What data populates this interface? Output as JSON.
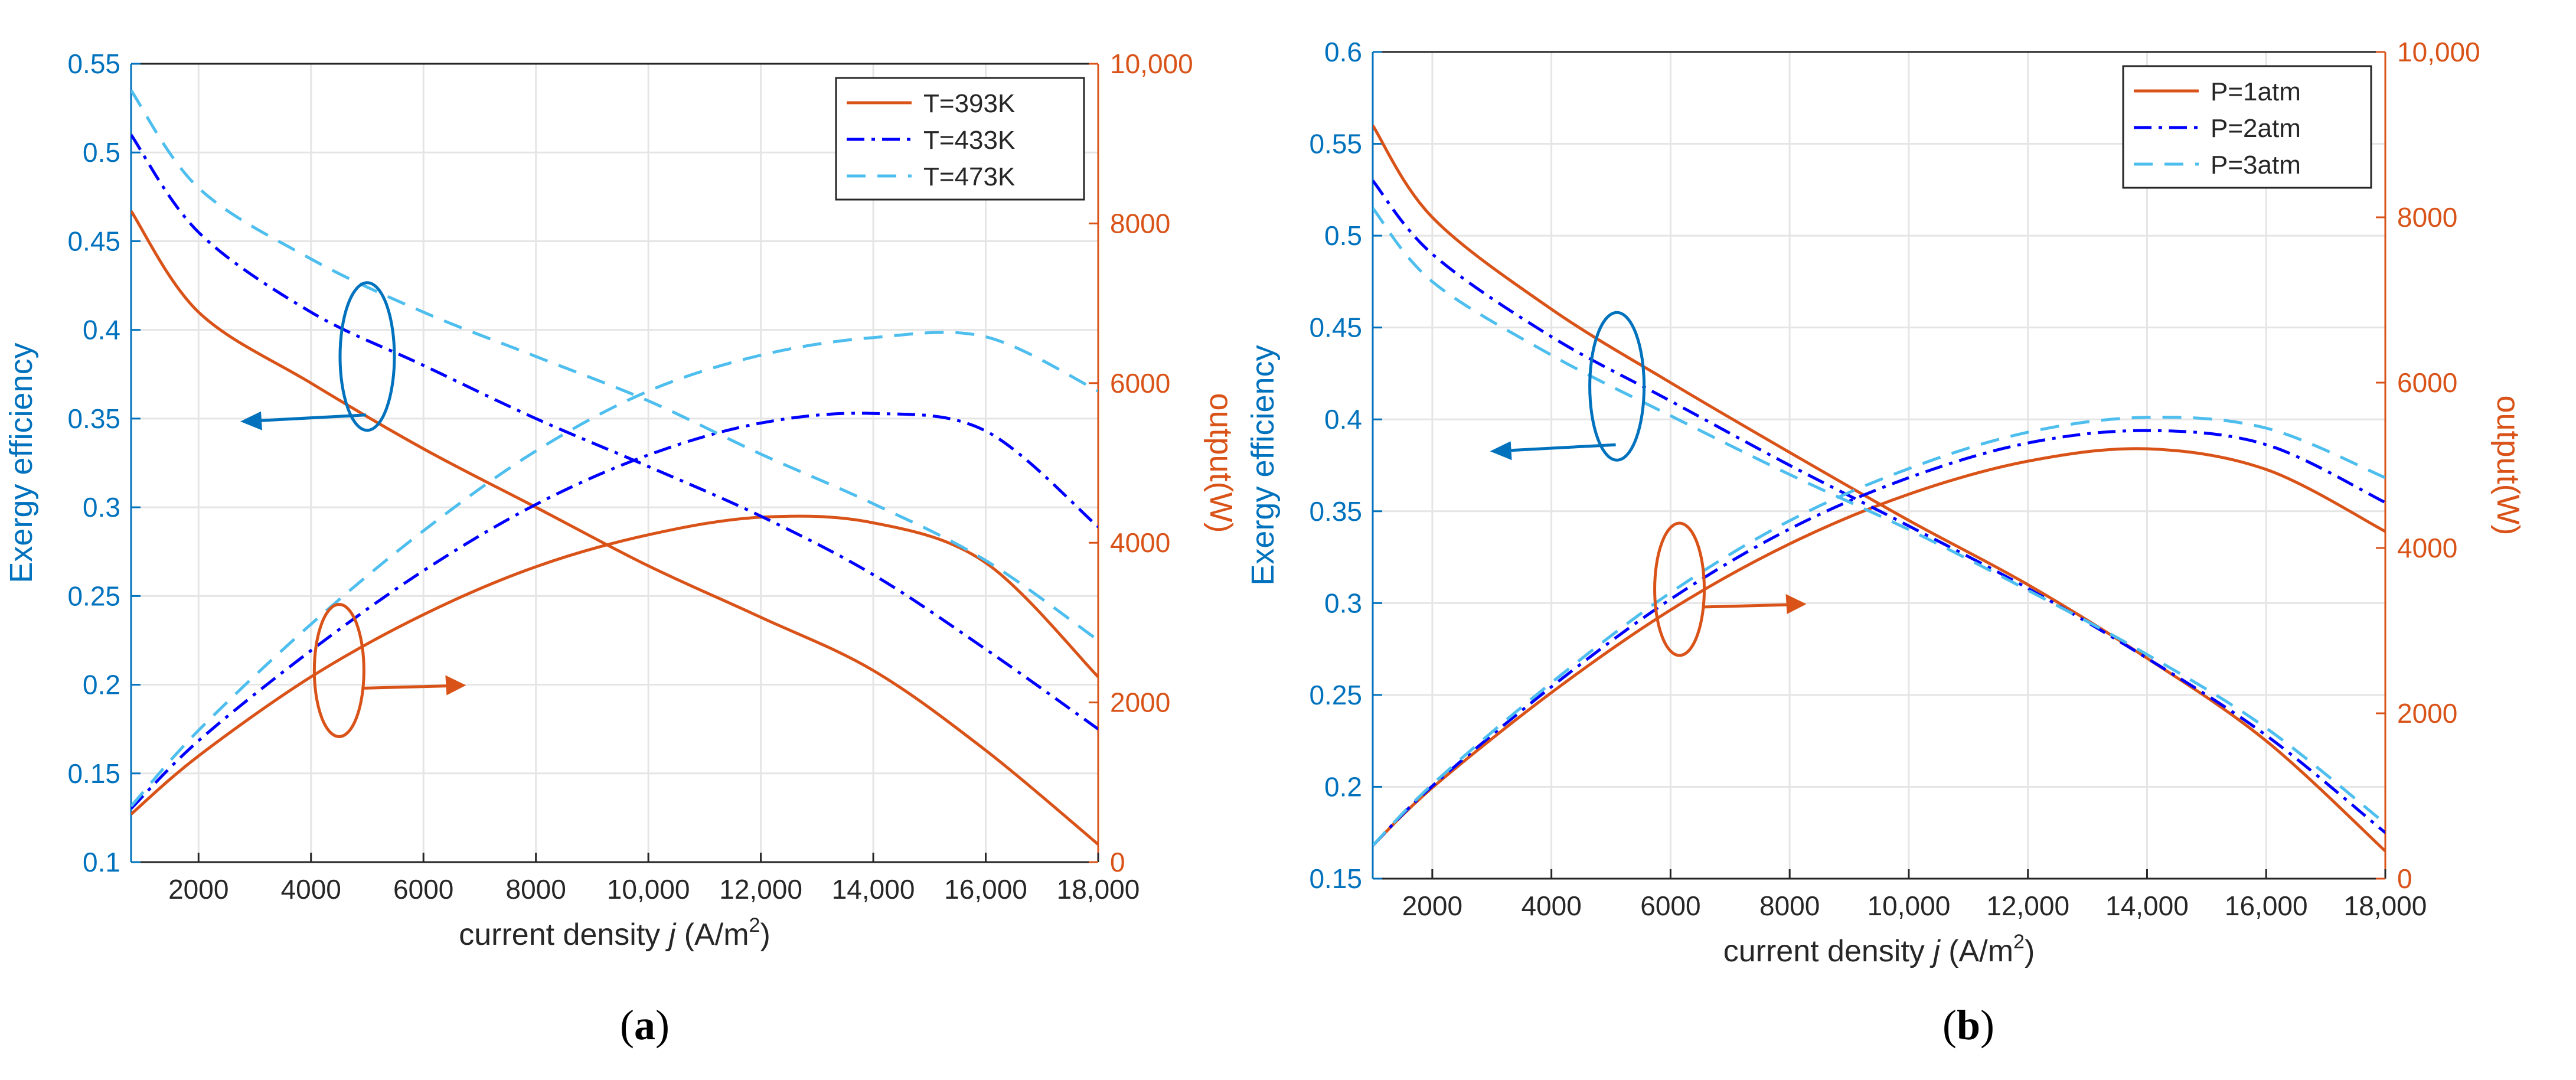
{
  "colors": {
    "left_axis": "#0072BD",
    "right_axis": "#D95319",
    "series1": "#D95319",
    "series2": "#0000FF",
    "series3": "#4DBEEE",
    "grid": "#E5E5E5"
  },
  "chart_data": [
    {
      "type": "line",
      "panel_label": "a",
      "xlabel": "current density j (A/m²)",
      "xlabel_parts": {
        "pre": "current density ",
        "var": "j",
        "post": " (A/m",
        "sup": "2",
        "end": ")"
      },
      "ylabel": "Exergy efficiency",
      "ylabel_right": "output(W)",
      "xlim": [
        800,
        18000
      ],
      "ylim": [
        0.1,
        0.55
      ],
      "ylim_right": [
        0,
        10000
      ],
      "xticks": [
        2000,
        4000,
        6000,
        8000,
        10000,
        12000,
        14000,
        16000,
        18000
      ],
      "xtick_labels": [
        "2000",
        "4000",
        "6000",
        "8000",
        "10,000",
        "12,000",
        "14,000",
        "16,000",
        "18,000"
      ],
      "yticks": [
        0.1,
        0.15,
        0.2,
        0.25,
        0.3,
        0.35,
        0.4,
        0.45,
        0.5,
        0.55
      ],
      "ytick_labels": [
        "0.1",
        "0.15",
        "0.2",
        "0.25",
        "0.3",
        "0.35",
        "0.4",
        "0.45",
        "0.5",
        "0.55"
      ],
      "yticks_right": [
        0,
        2000,
        4000,
        6000,
        8000,
        10000
      ],
      "ytick_labels_right": [
        "0",
        "2000",
        "4000",
        "6000",
        "8000",
        "10,000"
      ],
      "legend_position": "top-right",
      "x": [
        800,
        2000,
        4000,
        6000,
        8000,
        10000,
        12000,
        14000,
        16000,
        18000
      ],
      "series": [
        {
          "name": "T=393K",
          "style": "solid",
          "color_key": "series1",
          "efficiency": [
            0.467,
            0.41,
            0.37,
            0.333,
            0.3,
            0.267,
            0.238,
            0.208,
            0.163,
            0.11
          ],
          "output": [
            600,
            1330,
            2320,
            3100,
            3700,
            4100,
            4320,
            4250,
            3750,
            2320
          ]
        },
        {
          "name": "T=433K",
          "style": "dashdot",
          "color_key": "series2",
          "efficiency": [
            0.51,
            0.455,
            0.41,
            0.38,
            0.35,
            0.323,
            0.295,
            0.262,
            0.22,
            0.175
          ],
          "output": [
            670,
            1520,
            2650,
            3650,
            4480,
            5100,
            5500,
            5620,
            5400,
            4200
          ]
        },
        {
          "name": "T=473K",
          "style": "dashed",
          "color_key": "series3",
          "efficiency": [
            0.535,
            0.48,
            0.44,
            0.41,
            0.385,
            0.36,
            0.33,
            0.302,
            0.27,
            0.225
          ],
          "output": [
            700,
            1650,
            2980,
            4150,
            5150,
            5900,
            6350,
            6570,
            6580,
            5900
          ]
        }
      ],
      "annotations": [
        {
          "text": "ellipse-arrow",
          "target": "left-axis",
          "arrow": "left"
        },
        {
          "text": "ellipse-arrow",
          "target": "right-axis",
          "arrow": "right"
        }
      ]
    },
    {
      "type": "line",
      "panel_label": "b",
      "xlabel": "current density j (A/m²)",
      "xlabel_parts": {
        "pre": "current density ",
        "var": "j",
        "post": " (A/m",
        "sup": "2",
        "end": ")"
      },
      "ylabel": "Exergy efficiency",
      "ylabel_right": "output(W)",
      "xlim": [
        1000,
        18000
      ],
      "ylim": [
        0.15,
        0.6
      ],
      "ylim_right": [
        0,
        10000
      ],
      "xticks": [
        2000,
        4000,
        6000,
        8000,
        10000,
        12000,
        14000,
        16000,
        18000
      ],
      "xtick_labels": [
        "2000",
        "4000",
        "6000",
        "8000",
        "10,000",
        "12,000",
        "14,000",
        "16,000",
        "18,000"
      ],
      "yticks": [
        0.15,
        0.2,
        0.25,
        0.3,
        0.35,
        0.4,
        0.45,
        0.5,
        0.55,
        0.6
      ],
      "ytick_labels": [
        "0.15",
        "0.2",
        "0.25",
        "0.3",
        "0.35",
        "0.4",
        "0.45",
        "0.5",
        "0.55",
        "0.6"
      ],
      "yticks_right": [
        0,
        2000,
        4000,
        6000,
        8000,
        10000
      ],
      "ytick_labels_right": [
        "0",
        "2000",
        "4000",
        "6000",
        "8000",
        "10,000"
      ],
      "legend_position": "top-right",
      "x": [
        1000,
        2000,
        4000,
        6000,
        8000,
        10000,
        12000,
        14000,
        16000,
        18000
      ],
      "series": [
        {
          "name": "P=1atm",
          "style": "solid",
          "color_key": "series1",
          "efficiency": [
            0.56,
            0.51,
            0.46,
            0.42,
            0.382,
            0.345,
            0.31,
            0.27,
            0.225,
            0.165
          ],
          "output": [
            400,
            1100,
            2250,
            3250,
            4050,
            4650,
            5050,
            5200,
            4950,
            4200
          ]
        },
        {
          "name": "P=2atm",
          "style": "dashdot",
          "color_key": "series2",
          "efficiency": [
            0.53,
            0.49,
            0.445,
            0.41,
            0.375,
            0.342,
            0.308,
            0.27,
            0.228,
            0.175
          ],
          "output": [
            400,
            1120,
            2320,
            3380,
            4230,
            4850,
            5270,
            5420,
            5250,
            4550
          ]
        },
        {
          "name": "P=3atm",
          "style": "dashed",
          "color_key": "series3",
          "efficiency": [
            0.515,
            0.475,
            0.435,
            0.402,
            0.37,
            0.34,
            0.307,
            0.272,
            0.232,
            0.18
          ],
          "output": [
            400,
            1140,
            2370,
            3460,
            4330,
            4960,
            5400,
            5580,
            5450,
            4850
          ]
        }
      ],
      "annotations": [
        {
          "text": "ellipse-arrow",
          "target": "left-axis",
          "arrow": "left"
        },
        {
          "text": "ellipse-arrow",
          "target": "right-axis",
          "arrow": "right"
        }
      ]
    }
  ]
}
